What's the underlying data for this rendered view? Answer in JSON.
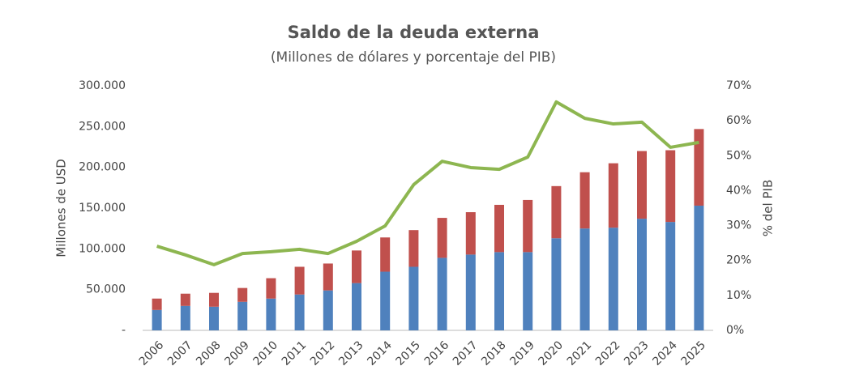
{
  "chart_data": {
    "type": "bar-line",
    "title": "Saldo de la deuda externa",
    "subtitle": "(Millones de dólares y porcentaje del PIB)",
    "ylabel": "Millones de USD",
    "y2label": "% del PIB",
    "categories": [
      "2006",
      "2007",
      "2008",
      "2009",
      "2010",
      "2011",
      "2012",
      "2013",
      "2014",
      "2015",
      "2016",
      "2017",
      "2018",
      "2019",
      "2020",
      "2021",
      "2022",
      "2023",
      "2024",
      "2025"
    ],
    "series": [
      {
        "color": "#4f81bd",
        "values": [
          25000,
          30000,
          29000,
          35000,
          39000,
          44000,
          49000,
          58000,
          72000,
          78000,
          89000,
          93000,
          96000,
          96000,
          113000,
          125000,
          126000,
          137000,
          133000,
          153000
        ]
      },
      {
        "color": "#c0504d",
        "values": [
          14000,
          15000,
          17000,
          17000,
          25000,
          34000,
          33000,
          40000,
          42000,
          45000,
          49000,
          52000,
          58000,
          64000,
          64000,
          69000,
          79000,
          83000,
          88000,
          94000
        ]
      },
      {
        "color": "#8db650",
        "axis": "y2",
        "values": [
          24.1,
          21.6,
          18.8,
          22.0,
          22.5,
          23.2,
          22.0,
          25.5,
          29.9,
          41.7,
          48.4,
          46.6,
          46.1,
          49.6,
          65.4,
          60.7,
          59.1,
          59.6,
          52.4,
          53.8
        ]
      }
    ],
    "ylim": [
      0,
      300000
    ],
    "yticks": [
      {
        "value": 0,
        "label": "-"
      },
      {
        "value": 50000,
        "label": "50.000"
      },
      {
        "value": 100000,
        "label": "100.000"
      },
      {
        "value": 150000,
        "label": "150.000"
      },
      {
        "value": 200000,
        "label": "200.000"
      },
      {
        "value": 250000,
        "label": "250.000"
      },
      {
        "value": 300000,
        "label": "300.000"
      }
    ],
    "y2lim": [
      0,
      70
    ],
    "y2ticks": [
      {
        "value": 0,
        "label": "0%"
      },
      {
        "value": 10,
        "label": "10%"
      },
      {
        "value": 20,
        "label": "20%"
      },
      {
        "value": 30,
        "label": "30%"
      },
      {
        "value": 40,
        "label": "40%"
      },
      {
        "value": 50,
        "label": "50%"
      },
      {
        "value": 60,
        "label": "60%"
      },
      {
        "value": 70,
        "label": "70%"
      }
    ]
  }
}
